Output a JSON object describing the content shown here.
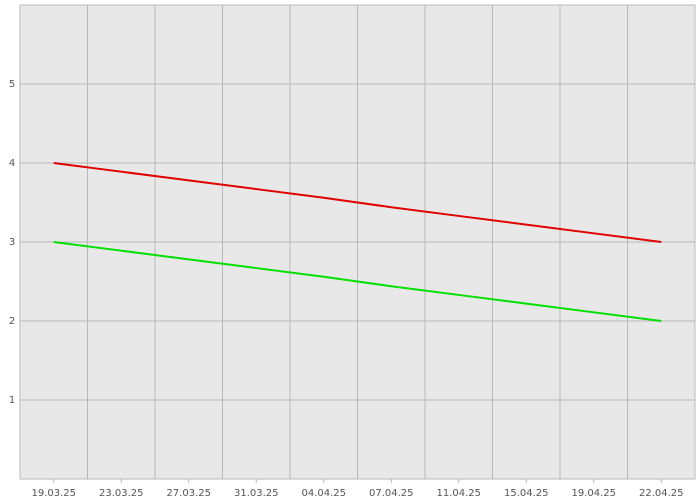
{
  "chart_data": {
    "type": "line",
    "categories": [
      "19.03.25",
      "23.03.25",
      "27.03.25",
      "31.03.25",
      "04.04.25",
      "07.04.25",
      "11.04.25",
      "15.04.25",
      "19.04.25",
      "22.04.25"
    ],
    "series": [
      {
        "color": "#e00000",
        "values": [
          4,
          3.89,
          3.78,
          3.67,
          3.56,
          3.44,
          3.33,
          3.22,
          3.11,
          3
        ]
      },
      {
        "color": "#00e000",
        "values": [
          3,
          2.89,
          2.78,
          2.67,
          2.56,
          2.44,
          2.33,
          2.22,
          2.11,
          2
        ]
      }
    ],
    "ylim": [
      0,
      6
    ],
    "yticks": [
      1,
      2,
      3,
      4,
      5
    ],
    "grid": true
  }
}
